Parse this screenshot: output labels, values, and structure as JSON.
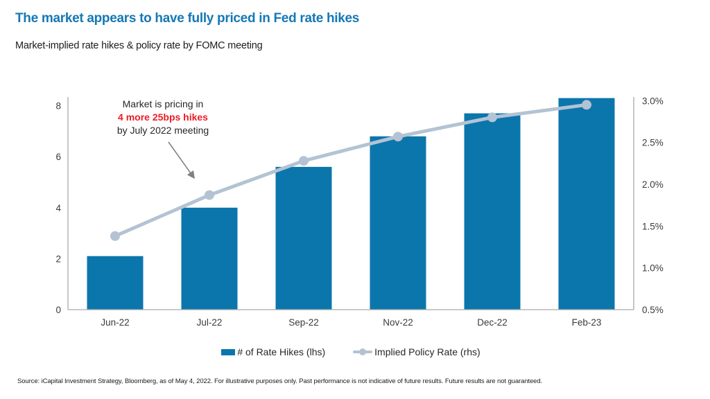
{
  "header": {
    "title": "The market appears to have fully priced in Fed rate hikes",
    "subtitle": "Market-implied rate hikes & policy rate by FOMC meeting"
  },
  "annotation": {
    "line1": "Market is pricing in",
    "line2": "4 more 25bps hikes",
    "line3": "by July 2022 meeting"
  },
  "legend": {
    "bar_label": "# of Rate Hikes (lhs)",
    "line_label": "Implied Policy Rate (rhs)"
  },
  "footer": {
    "source": "Source: iCapital Investment Strategy, Bloomberg, as of May 4, 2022. For illustrative purposes only. Past performance is not indicative of future results. Future results are not guaranteed."
  },
  "colors": {
    "title": "#1478b5",
    "bar": "#0b76ac",
    "line": "#b3c3d3",
    "annotation_red": "#ee1c25",
    "axis": "#a9a9a9",
    "arrow": "#808080",
    "tick_text": "#3a3a3a"
  },
  "chart_data": {
    "type": "combo",
    "title": "Market-implied rate hikes & policy rate by FOMC meeting",
    "categories": [
      "Jun-22",
      "Jul-22",
      "Sep-22",
      "Nov-22",
      "Dec-22",
      "Feb-23"
    ],
    "series": [
      {
        "name": "# of Rate Hikes (lhs)",
        "type": "bar",
        "axis": "left",
        "values": [
          2.1,
          4.0,
          5.6,
          6.8,
          7.7,
          8.3
        ]
      },
      {
        "name": "Implied Policy Rate (rhs)",
        "type": "line",
        "axis": "right",
        "unit": "%",
        "values": [
          1.38,
          1.87,
          2.28,
          2.57,
          2.8,
          2.95
        ]
      }
    ],
    "left_axis": {
      "ticks": [
        "0",
        "2",
        "4",
        "6",
        "8"
      ],
      "tick_values": [
        0,
        2,
        4,
        6,
        8
      ],
      "min": 0,
      "max": 8.35
    },
    "right_axis": {
      "ticks": [
        "0.5%",
        "1.0%",
        "1.5%",
        "2.0%",
        "2.5%",
        "3.0%"
      ],
      "tick_values": [
        0.5,
        1.0,
        1.5,
        2.0,
        2.5,
        3.0
      ],
      "min": 0.5,
      "max": 3.0,
      "unit": "%"
    },
    "grid": false,
    "legend_position": "bottom"
  }
}
